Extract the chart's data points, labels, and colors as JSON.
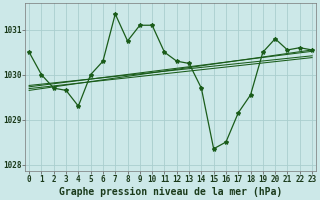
{
  "title": "Graphe pression niveau de la mer (hPa)",
  "bg_color": "#cce8e8",
  "grid_color": "#aacece",
  "line_color": "#1a5c1a",
  "x_values": [
    0,
    1,
    2,
    3,
    4,
    5,
    6,
    7,
    8,
    9,
    10,
    11,
    12,
    13,
    14,
    15,
    16,
    17,
    18,
    19,
    20,
    21,
    22,
    23
  ],
  "main_data": [
    1030.5,
    1030.0,
    1029.7,
    1029.65,
    1029.3,
    1030.0,
    1030.3,
    1031.35,
    1030.75,
    1031.1,
    1031.1,
    1030.5,
    1030.3,
    1030.25,
    1029.7,
    1028.35,
    1028.5,
    1029.15,
    1029.55,
    1030.5,
    1030.8,
    1030.55,
    1030.6,
    1030.55
  ],
  "trend_lines": [
    [
      [
        0,
        1029.73
      ],
      [
        23,
        1030.52
      ]
    ],
    [
      [
        0,
        1029.69
      ],
      [
        23,
        1030.38
      ]
    ],
    [
      [
        0,
        1029.76
      ],
      [
        23,
        1030.42
      ]
    ],
    [
      [
        0,
        1029.65
      ],
      [
        23,
        1030.55
      ]
    ]
  ],
  "ylim": [
    1027.85,
    1031.6
  ],
  "yticks": [
    1028,
    1029,
    1030,
    1031
  ],
  "xticks": [
    0,
    1,
    2,
    3,
    4,
    5,
    6,
    7,
    8,
    9,
    10,
    11,
    12,
    13,
    14,
    15,
    16,
    17,
    18,
    19,
    20,
    21,
    22,
    23
  ],
  "xlim": [
    -0.3,
    23.3
  ],
  "tick_fontsize": 5.5,
  "xlabel_fontsize": 7.0,
  "linewidth": 0.9,
  "trend_linewidth": 0.75,
  "marker_size": 3.0
}
